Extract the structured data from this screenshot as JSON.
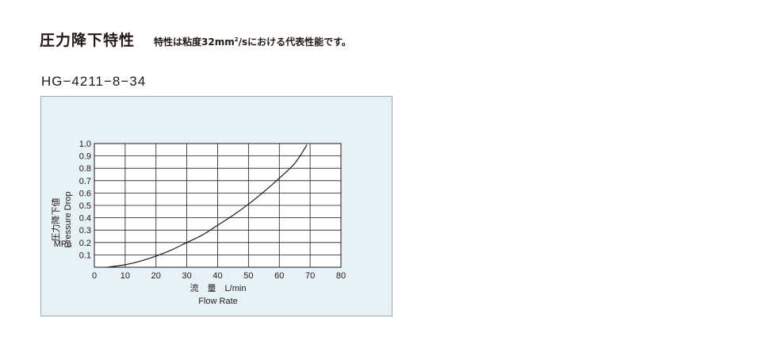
{
  "header": {
    "title": "圧力降下特性",
    "note_prefix": "特性は粘度32mm",
    "note_sup": "2",
    "note_suffix": "/sにおける代表性能です。"
  },
  "model": "HG−4211−8−34",
  "chart_data": {
    "type": "line",
    "xlabel_jp": "流　量　L/min",
    "xlabel_en": "Flow Rate",
    "ylabel_jp": "圧力降下値",
    "ylabel_en": "Pressure Drop",
    "yunit": "MPa",
    "xlim": [
      0,
      80
    ],
    "ylim": [
      0,
      1.0
    ],
    "xticks": [
      0,
      10,
      20,
      30,
      40,
      50,
      60,
      70,
      80
    ],
    "yticks": [
      0.1,
      0.2,
      0.3,
      0.4,
      0.5,
      0.6,
      0.7,
      0.8,
      0.9,
      1.0
    ],
    "grid": true,
    "series": [
      {
        "x": [
          4,
          10,
          15,
          20,
          25,
          30,
          35,
          40,
          45,
          50,
          55,
          60,
          65,
          69
        ],
        "y": [
          0.0,
          0.02,
          0.05,
          0.09,
          0.14,
          0.2,
          0.26,
          0.34,
          0.42,
          0.51,
          0.61,
          0.72,
          0.84,
          0.99
        ]
      }
    ]
  }
}
